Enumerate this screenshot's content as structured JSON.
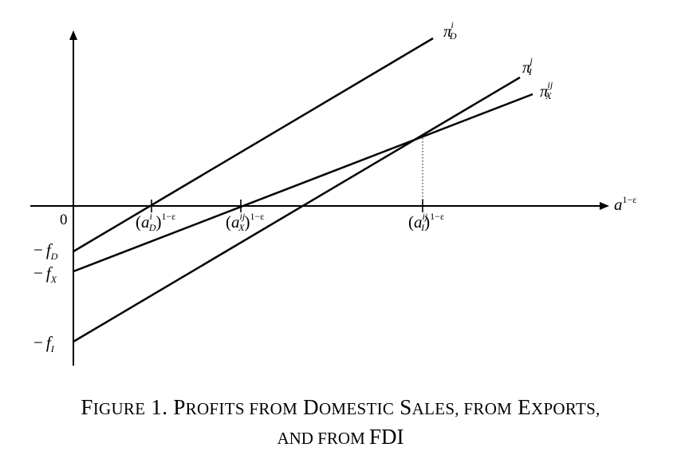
{
  "axes": {
    "origin_label": "0",
    "x_label": "a",
    "x_label_exp": "1−ε"
  },
  "lines": {
    "domestic": {
      "base": "π",
      "sup": "i",
      "sub": "D"
    },
    "fdi": {
      "base": "π",
      "sup": "j",
      "sub": "I"
    },
    "export": {
      "base": "π",
      "sup": "ij",
      "sub": "X"
    }
  },
  "ticks": {
    "domestic": {
      "var": "a",
      "sup": "i",
      "sub": "D",
      "exp": "1−ε"
    },
    "export": {
      "var": "a",
      "sup": "ij",
      "sub": "X",
      "exp": "1−ε"
    },
    "fdi": {
      "var": "a",
      "sup": "ij",
      "sub": "I",
      "exp": "1−ε"
    }
  },
  "intercepts": {
    "domestic": {
      "sign": "−",
      "var": "f",
      "sub": "D"
    },
    "export": {
      "sign": "−",
      "var": "f",
      "sub": "X"
    },
    "fdi": {
      "sign": "−",
      "var": "f",
      "sub": "I"
    }
  },
  "caption": {
    "line1": [
      {
        "text": "F",
        "size": "big"
      },
      {
        "text": "IGURE",
        "size": "small"
      },
      {
        "text": " 1. ",
        "size": "big"
      },
      {
        "text": "P",
        "size": "big"
      },
      {
        "text": "ROFITS FROM",
        "size": "small"
      },
      {
        "text": " D",
        "size": "big"
      },
      {
        "text": "OMESTIC",
        "size": "small"
      },
      {
        "text": " S",
        "size": "big"
      },
      {
        "text": "ALES, FROM",
        "size": "small"
      },
      {
        "text": " E",
        "size": "big"
      },
      {
        "text": "XPORTS,",
        "size": "small"
      }
    ],
    "line2": [
      {
        "text": "AND FROM ",
        "size": "small"
      },
      {
        "text": "FDI",
        "size": "big"
      }
    ]
  }
}
